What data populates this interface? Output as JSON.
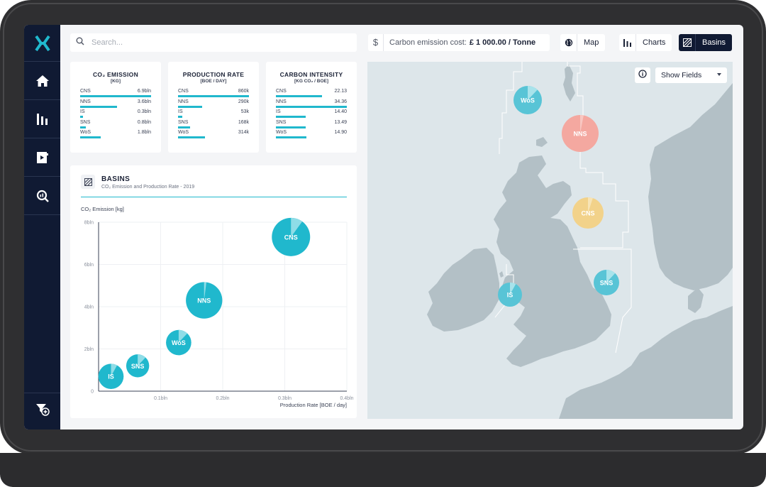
{
  "sidebar": {
    "logo": "x-logo-icon",
    "items": [
      {
        "icon": "home-icon"
      },
      {
        "icon": "bar-chart-icon"
      },
      {
        "icon": "document-export-icon"
      },
      {
        "icon": "magnify-chart-icon"
      }
    ],
    "bottom_icon": "filter-add-icon"
  },
  "topbar": {
    "search_placeholder": "Search...",
    "cost_label": "Carbon emission cost:",
    "cost_value": "£ 1 000.00 / Tonne",
    "views": [
      {
        "label": "Map",
        "icon": "globe-icon",
        "active": false
      },
      {
        "label": "Charts",
        "icon": "bar-chart-icon",
        "active": false
      },
      {
        "label": "Basins",
        "icon": "basins-icon",
        "active": true
      }
    ]
  },
  "kpis": [
    {
      "title": "CO₂ EMISSION",
      "unit": "[KG]",
      "rows": [
        {
          "name": "CNS",
          "value": "6.9bln",
          "fraction": 1.0
        },
        {
          "name": "NNS",
          "value": "3.6bln",
          "fraction": 0.52
        },
        {
          "name": "IS",
          "value": "0.3bln",
          "fraction": 0.04
        },
        {
          "name": "SNS",
          "value": "0.8bln",
          "fraction": 0.08
        },
        {
          "name": "WoS",
          "value": "1.8bln",
          "fraction": 0.29
        }
      ]
    },
    {
      "title": "PRODUCTION RATE",
      "unit": "[BOE / DAY]",
      "rows": [
        {
          "name": "CNS",
          "value": "860k",
          "fraction": 1.0
        },
        {
          "name": "NNS",
          "value": "290k",
          "fraction": 0.34
        },
        {
          "name": "IS",
          "value": "53k",
          "fraction": 0.06
        },
        {
          "name": "SNS",
          "value": "168k",
          "fraction": 0.17
        },
        {
          "name": "WoS",
          "value": "314k",
          "fraction": 0.38
        }
      ]
    },
    {
      "title": "CARBON INTENSITY",
      "unit": "[KG CO₂ / BOE]",
      "rows": [
        {
          "name": "CNS",
          "value": "22.13",
          "fraction": 0.65
        },
        {
          "name": "NNS",
          "value": "34.36",
          "fraction": 1.0
        },
        {
          "name": "IS",
          "value": "14.40",
          "fraction": 0.42
        },
        {
          "name": "SNS",
          "value": "13.49",
          "fraction": 0.42
        },
        {
          "name": "WoS",
          "value": "14.90",
          "fraction": 0.43
        }
      ]
    }
  ],
  "chart": {
    "title": "BASINS",
    "subtitle": "CO₂ Emission and Production Rate - 2019",
    "icon": "basins-icon"
  },
  "chart_data": {
    "type": "scatter",
    "title": "BASINS",
    "subtitle": "CO₂ Emission and Production Rate - 2019",
    "xlabel": "Production Rate [BOE / day]",
    "ylabel": "CO₂ Emission [kg]",
    "x_ticks": [
      "0.1bln",
      "0.2bln",
      "0.3bln",
      "0.4bln"
    ],
    "y_ticks": [
      "0",
      "2bln",
      "4bln",
      "6bln",
      "8bln"
    ],
    "xlim": [
      0,
      0.4
    ],
    "ylim": [
      0,
      8
    ],
    "points": [
      {
        "label": "CNS",
        "x": 0.31,
        "y": 7.3,
        "size": 1.0,
        "slice": 0.1
      },
      {
        "label": "NNS",
        "x": 0.17,
        "y": 4.3,
        "size": 0.95,
        "slice": 0.02
      },
      {
        "label": "WoS",
        "x": 0.129,
        "y": 2.3,
        "size": 0.66,
        "slice": 0.12
      },
      {
        "label": "SNS",
        "x": 0.063,
        "y": 1.2,
        "size": 0.6,
        "slice": 0.12
      },
      {
        "label": "IS",
        "x": 0.02,
        "y": 0.7,
        "size": 0.66,
        "slice": 0.08
      }
    ],
    "color": "#20b8cd",
    "slice_color": "#8fdde7"
  },
  "map": {
    "show_fields_label": "Show Fields",
    "info_icon": "info-icon",
    "basins": [
      {
        "label": "WoS",
        "color": "#58c4d6",
        "slice_color": "#a8e3eb",
        "slice": 0.12
      },
      {
        "label": "NNS",
        "color": "#f4a8a0",
        "slice_color": "#f8c7c2",
        "slice": 0.03
      },
      {
        "label": "CNS",
        "color": "#f2d28a",
        "slice_color": "#f7e4b6",
        "slice": 0.05
      },
      {
        "label": "SNS",
        "color": "#58c4d6",
        "slice_color": "#a8e3eb",
        "slice": 0.12
      },
      {
        "label": "IS",
        "color": "#58c4d6",
        "slice_color": "#a8e3eb",
        "slice": 0.08
      }
    ],
    "land_color": "#b3c0c6",
    "sea_color": "#dde6ea"
  }
}
